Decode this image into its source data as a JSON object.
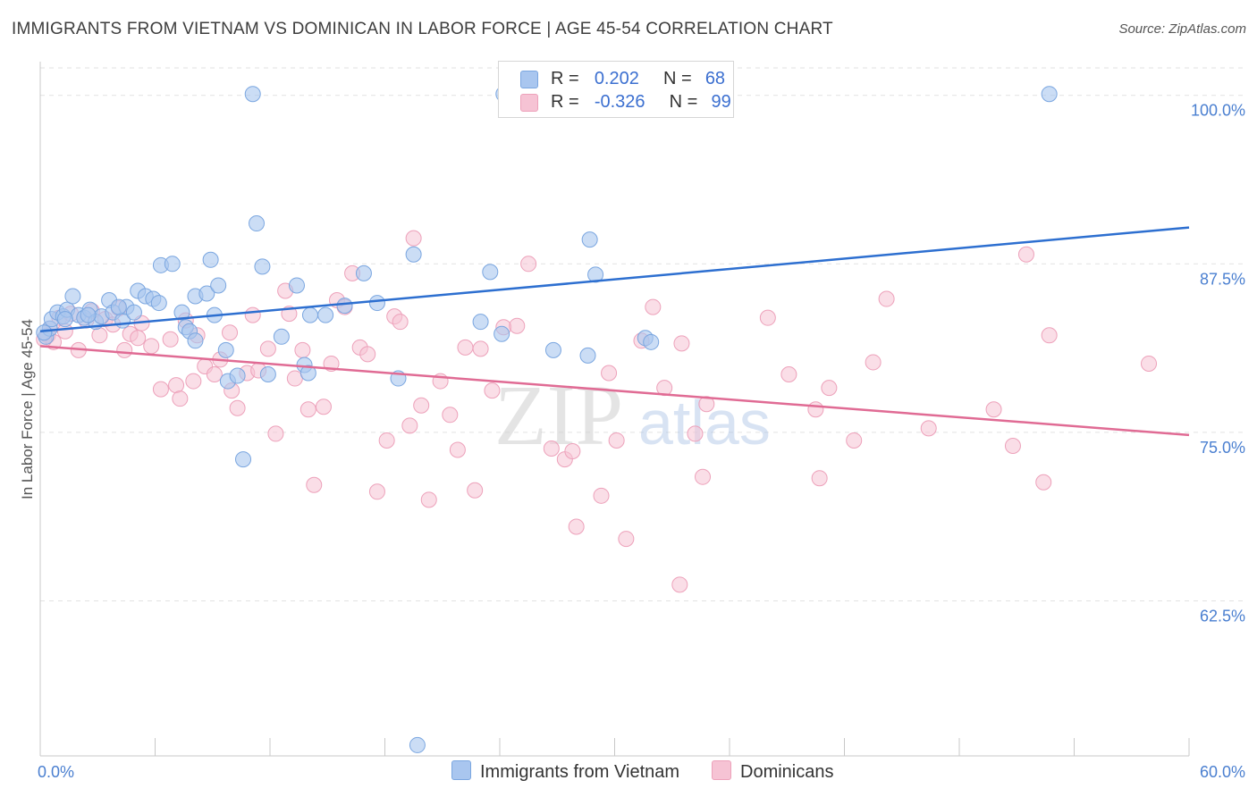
{
  "title": "IMMIGRANTS FROM VIETNAM VS DOMINICAN IN LABOR FORCE | AGE 45-54 CORRELATION CHART",
  "source": "Source: ZipAtlas.com",
  "watermark": {
    "zip": "ZIP",
    "atlas": "atlas"
  },
  "legend": {
    "vietnam": {
      "r_label": "R =",
      "r_value": "0.202",
      "n_label": "N =",
      "n_value": "68"
    },
    "dominican": {
      "r_label": "R =",
      "r_value": "-0.326",
      "n_label": "N =",
      "n_value": "99"
    }
  },
  "bottom_legend": {
    "vietnam": "Immigrants from Vietnam",
    "dominican": "Dominicans"
  },
  "colors": {
    "vietnam_fill": "#a9c6ef",
    "vietnam_stroke": "#7aa6e0",
    "vietnam_line": "#2d6fd0",
    "dominican_fill": "#f6c3d4",
    "dominican_stroke": "#eda1ba",
    "dominican_line": "#e06b94"
  },
  "chart_data": {
    "type": "scatter",
    "title": "IMMIGRANTS FROM VIETNAM VS DOMINICAN IN LABOR FORCE | AGE 45-54 CORRELATION CHART",
    "xlabel": "",
    "ylabel": "In Labor Force | Age 45-54",
    "xlim": [
      0,
      60
    ],
    "ylim": [
      51,
      102.5
    ],
    "x_tick_labels": [
      "0.0%",
      "60.0%"
    ],
    "y_ticks": [
      62.5,
      75.0,
      87.5,
      100.0
    ],
    "y_tick_labels": [
      "62.5%",
      "75.0%",
      "87.5%",
      "100.0%"
    ],
    "grid": true,
    "series": [
      {
        "name": "Immigrants from Vietnam",
        "r": 0.202,
        "n": 68,
        "trend": {
          "x": [
            0,
            60
          ],
          "y": [
            82.5,
            90.2
          ]
        },
        "points": [
          [
            0.3,
            82.1
          ],
          [
            0.5,
            82.7
          ],
          [
            0.6,
            83.4
          ],
          [
            0.9,
            83.9
          ],
          [
            1.2,
            83.6
          ],
          [
            1.4,
            84.1
          ],
          [
            1.7,
            85.1
          ],
          [
            2.0,
            83.7
          ],
          [
            2.3,
            83.5
          ],
          [
            2.6,
            84.1
          ],
          [
            2.9,
            83.2
          ],
          [
            3.2,
            83.6
          ],
          [
            3.6,
            84.8
          ],
          [
            3.8,
            83.9
          ],
          [
            4.3,
            83.3
          ],
          [
            4.5,
            84.3
          ],
          [
            4.9,
            83.9
          ],
          [
            5.1,
            85.5
          ],
          [
            5.5,
            85.1
          ],
          [
            5.9,
            84.9
          ],
          [
            6.2,
            84.6
          ],
          [
            6.3,
            87.4
          ],
          [
            6.9,
            87.5
          ],
          [
            7.4,
            83.9
          ],
          [
            7.6,
            82.8
          ],
          [
            7.8,
            82.5
          ],
          [
            8.1,
            81.8
          ],
          [
            8.1,
            85.1
          ],
          [
            8.7,
            85.3
          ],
          [
            8.9,
            87.8
          ],
          [
            9.1,
            83.7
          ],
          [
            9.3,
            85.9
          ],
          [
            9.7,
            81.1
          ],
          [
            9.8,
            78.8
          ],
          [
            10.3,
            79.2
          ],
          [
            10.6,
            73.0
          ],
          [
            11.1,
            100.1
          ],
          [
            11.3,
            90.5
          ],
          [
            11.6,
            87.3
          ],
          [
            11.9,
            79.3
          ],
          [
            12.6,
            82.1
          ],
          [
            13.4,
            85.9
          ],
          [
            13.8,
            80.0
          ],
          [
            14.0,
            79.4
          ],
          [
            14.1,
            83.7
          ],
          [
            14.9,
            83.7
          ],
          [
            15.9,
            84.4
          ],
          [
            16.9,
            86.8
          ],
          [
            17.6,
            84.6
          ],
          [
            18.7,
            79.0
          ],
          [
            19.5,
            88.2
          ],
          [
            19.7,
            51.8
          ],
          [
            23.0,
            83.2
          ],
          [
            23.5,
            86.9
          ],
          [
            24.1,
            82.3
          ],
          [
            24.2,
            100.1
          ],
          [
            24.5,
            100.1
          ],
          [
            26.8,
            81.1
          ],
          [
            28.6,
            80.7
          ],
          [
            28.7,
            89.3
          ],
          [
            29.0,
            86.7
          ],
          [
            31.6,
            82.0
          ],
          [
            31.9,
            81.7
          ],
          [
            52.7,
            100.1
          ],
          [
            0.2,
            82.4
          ],
          [
            1.3,
            83.4
          ],
          [
            2.5,
            83.7
          ],
          [
            4.1,
            84.3
          ]
        ]
      },
      {
        "name": "Dominicans",
        "r": -0.326,
        "n": 99,
        "trend": {
          "x": [
            0,
            60
          ],
          "y": [
            81.4,
            74.8
          ]
        },
        "points": [
          [
            0.4,
            82.2
          ],
          [
            0.7,
            81.7
          ],
          [
            1.0,
            83.5
          ],
          [
            1.3,
            82.5
          ],
          [
            1.6,
            83.8
          ],
          [
            2.0,
            81.1
          ],
          [
            2.4,
            83.3
          ],
          [
            2.7,
            84.0
          ],
          [
            3.1,
            82.2
          ],
          [
            3.4,
            83.4
          ],
          [
            3.8,
            83.0
          ],
          [
            4.1,
            84.2
          ],
          [
            4.4,
            81.1
          ],
          [
            4.7,
            82.3
          ],
          [
            5.1,
            82.0
          ],
          [
            5.3,
            83.1
          ],
          [
            5.8,
            81.4
          ],
          [
            6.3,
            78.2
          ],
          [
            6.8,
            81.9
          ],
          [
            7.1,
            78.5
          ],
          [
            7.3,
            77.5
          ],
          [
            7.6,
            83.3
          ],
          [
            8.0,
            78.8
          ],
          [
            8.2,
            82.2
          ],
          [
            8.6,
            79.9
          ],
          [
            9.1,
            79.3
          ],
          [
            9.4,
            80.4
          ],
          [
            9.9,
            82.4
          ],
          [
            10.0,
            78.1
          ],
          [
            10.3,
            76.8
          ],
          [
            10.8,
            79.4
          ],
          [
            11.1,
            83.7
          ],
          [
            11.4,
            79.6
          ],
          [
            11.9,
            81.2
          ],
          [
            12.3,
            74.9
          ],
          [
            12.8,
            85.5
          ],
          [
            13.0,
            83.8
          ],
          [
            13.3,
            79.0
          ],
          [
            13.7,
            81.1
          ],
          [
            14.0,
            76.7
          ],
          [
            14.3,
            71.1
          ],
          [
            14.8,
            76.9
          ],
          [
            15.2,
            80.1
          ],
          [
            15.5,
            84.8
          ],
          [
            15.9,
            84.3
          ],
          [
            16.3,
            86.8
          ],
          [
            16.7,
            81.3
          ],
          [
            17.1,
            80.8
          ],
          [
            17.6,
            70.6
          ],
          [
            18.1,
            74.4
          ],
          [
            18.5,
            83.6
          ],
          [
            18.8,
            83.2
          ],
          [
            19.3,
            75.5
          ],
          [
            19.5,
            89.4
          ],
          [
            19.9,
            77.0
          ],
          [
            20.3,
            70.0
          ],
          [
            20.9,
            78.8
          ],
          [
            21.4,
            76.3
          ],
          [
            21.8,
            73.7
          ],
          [
            22.2,
            81.3
          ],
          [
            22.7,
            70.7
          ],
          [
            23.0,
            81.2
          ],
          [
            23.6,
            78.1
          ],
          [
            24.2,
            82.8
          ],
          [
            24.9,
            82.9
          ],
          [
            25.5,
            87.5
          ],
          [
            26.7,
            73.8
          ],
          [
            27.4,
            73.0
          ],
          [
            27.8,
            73.6
          ],
          [
            28.0,
            68.0
          ],
          [
            29.3,
            70.3
          ],
          [
            29.7,
            79.4
          ],
          [
            30.1,
            74.4
          ],
          [
            30.6,
            67.1
          ],
          [
            31.4,
            81.8
          ],
          [
            32.0,
            84.3
          ],
          [
            32.6,
            78.3
          ],
          [
            33.4,
            63.7
          ],
          [
            33.5,
            81.6
          ],
          [
            34.2,
            74.9
          ],
          [
            34.6,
            71.7
          ],
          [
            34.8,
            77.1
          ],
          [
            38.0,
            83.5
          ],
          [
            39.1,
            79.3
          ],
          [
            40.5,
            76.7
          ],
          [
            40.7,
            71.6
          ],
          [
            41.2,
            78.3
          ],
          [
            42.5,
            74.4
          ],
          [
            43.5,
            80.2
          ],
          [
            44.2,
            84.9
          ],
          [
            46.4,
            75.3
          ],
          [
            49.8,
            76.7
          ],
          [
            50.8,
            74.0
          ],
          [
            51.5,
            88.2
          ],
          [
            52.4,
            71.3
          ],
          [
            52.7,
            82.2
          ],
          [
            57.9,
            80.1
          ],
          [
            0.2,
            81.9
          ],
          [
            0.5,
            82.7
          ]
        ]
      }
    ]
  }
}
